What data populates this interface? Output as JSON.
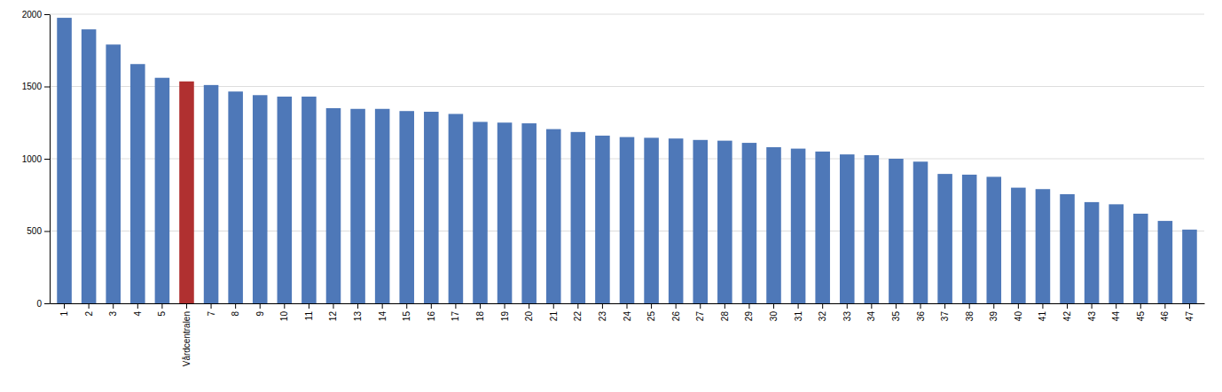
{
  "chart_data": {
    "type": "bar",
    "categories": [
      "1",
      "2",
      "3",
      "4",
      "5",
      "Vårdcentralen",
      "7",
      "8",
      "9",
      "10",
      "11",
      "12",
      "13",
      "14",
      "15",
      "16",
      "17",
      "18",
      "19",
      "20",
      "21",
      "22",
      "23",
      "24",
      "25",
      "26",
      "27",
      "28",
      "29",
      "30",
      "31",
      "32",
      "33",
      "34",
      "35",
      "36",
      "37",
      "38",
      "39",
      "40",
      "41",
      "42",
      "43",
      "44",
      "45",
      "46",
      "47"
    ],
    "values": [
      1975,
      1895,
      1790,
      1655,
      1560,
      1535,
      1510,
      1465,
      1440,
      1430,
      1430,
      1350,
      1345,
      1345,
      1330,
      1325,
      1310,
      1255,
      1250,
      1245,
      1205,
      1185,
      1160,
      1150,
      1145,
      1140,
      1130,
      1125,
      1110,
      1080,
      1070,
      1050,
      1030,
      1025,
      1000,
      980,
      895,
      890,
      875,
      800,
      790,
      755,
      700,
      685,
      620,
      570,
      510
    ],
    "colors": [
      "#4E78B8",
      "#4E78B8",
      "#4E78B8",
      "#4E78B8",
      "#4E78B8",
      "#B03030",
      "#4E78B8",
      "#4E78B8",
      "#4E78B8",
      "#4E78B8",
      "#4E78B8",
      "#4E78B8",
      "#4E78B8",
      "#4E78B8",
      "#4E78B8",
      "#4E78B8",
      "#4E78B8",
      "#4E78B8",
      "#4E78B8",
      "#4E78B8",
      "#4E78B8",
      "#4E78B8",
      "#4E78B8",
      "#4E78B8",
      "#4E78B8",
      "#4E78B8",
      "#4E78B8",
      "#4E78B8",
      "#4E78B8",
      "#4E78B8",
      "#4E78B8",
      "#4E78B8",
      "#4E78B8",
      "#4E78B8",
      "#4E78B8",
      "#4E78B8",
      "#4E78B8",
      "#4E78B8",
      "#4E78B8",
      "#4E78B8",
      "#4E78B8",
      "#4E78B8",
      "#4E78B8",
      "#4E78B8",
      "#4E78B8",
      "#4E78B8",
      "#4E78B8"
    ],
    "ylim": [
      0,
      2000
    ],
    "yticks": [
      0,
      500,
      1000,
      1500,
      2000
    ],
    "grid": true
  }
}
